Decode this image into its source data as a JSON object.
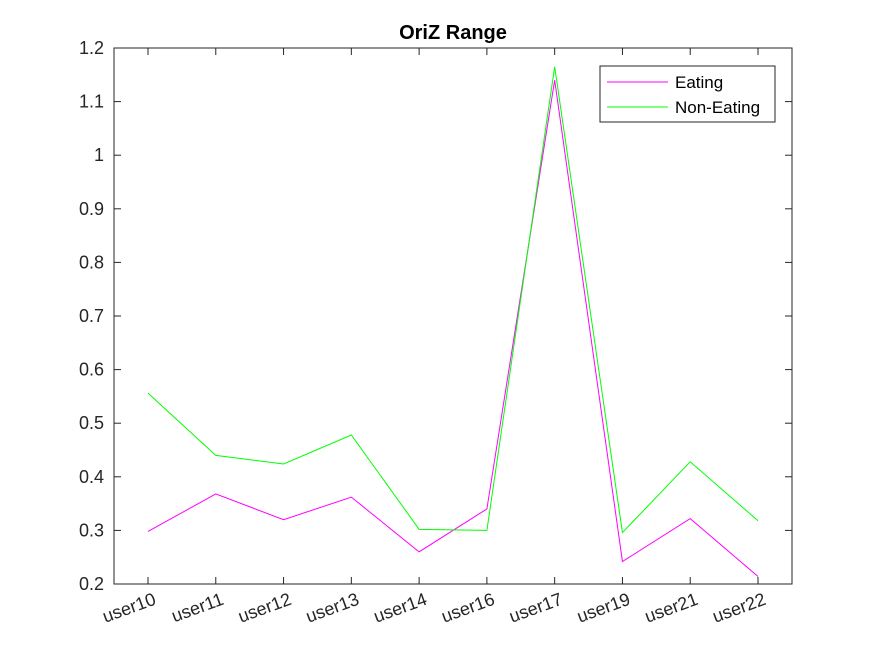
{
  "chart_data": {
    "type": "line",
    "title": "OriZ Range",
    "xlabel": "",
    "ylabel": "",
    "categories": [
      "user10",
      "user11",
      "user12",
      "user13",
      "user14",
      "user16",
      "user17",
      "user19",
      "user21",
      "user22"
    ],
    "ylim": [
      0.2,
      1.2
    ],
    "yticks": [
      0.2,
      0.3,
      0.4,
      0.5,
      0.6,
      0.7,
      0.8,
      0.9,
      1,
      1.1,
      1.2
    ],
    "ytick_labels": [
      "0.2",
      "0.3",
      "0.4",
      "0.5",
      "0.6",
      "0.7",
      "0.8",
      "0.9",
      "1",
      "1.1",
      "1.2"
    ],
    "grid": false,
    "legend_position": "top-right",
    "series": [
      {
        "name": "Eating",
        "color": "#ff00ff",
        "values": [
          0.298,
          0.368,
          0.32,
          0.362,
          0.26,
          0.34,
          1.14,
          0.242,
          0.322,
          0.214
        ]
      },
      {
        "name": "Non-Eating",
        "color": "#00ff00",
        "values": [
          0.556,
          0.44,
          0.424,
          0.478,
          0.302,
          0.3,
          1.165,
          0.296,
          0.428,
          0.318
        ]
      }
    ]
  }
}
